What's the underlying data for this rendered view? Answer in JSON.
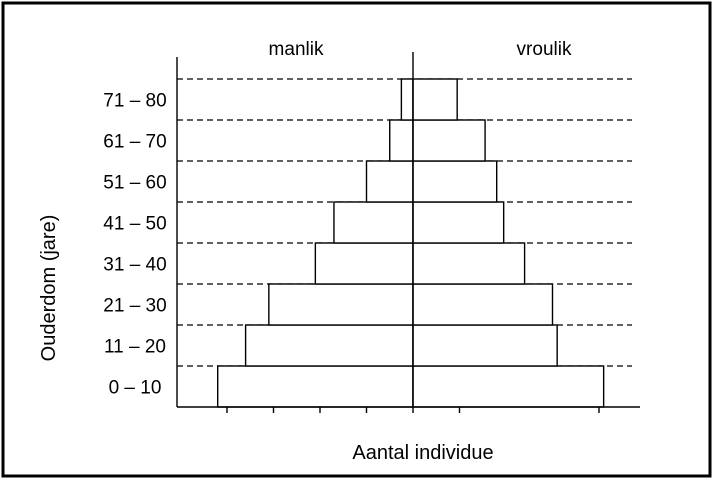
{
  "chart_data": {
    "type": "bar",
    "subtype": "population-pyramid",
    "title": "",
    "xlabel": "Aantal individue",
    "ylabel": "Ouderdom (jare)",
    "group_labels": {
      "left": "manlik",
      "right": "vroulik"
    },
    "categories": [
      "0 – 10",
      "11 – 20",
      "21 – 30",
      "31 – 40",
      "41 – 50",
      "51 – 60",
      "61 – 70",
      "71 – 80"
    ],
    "series": [
      {
        "name": "manlik",
        "side": "left",
        "values": [
          4.2,
          3.6,
          3.1,
          2.1,
          1.7,
          1.0,
          0.5,
          0.25
        ]
      },
      {
        "name": "vroulik",
        "side": "right",
        "values": [
          4.1,
          3.1,
          3.0,
          2.4,
          1.95,
          1.8,
          1.55,
          0.95
        ]
      }
    ],
    "xlim": [
      -5,
      5
    ],
    "x_ticks": [
      -4,
      -3,
      -2,
      -1,
      0,
      1,
      4
    ],
    "gridlines": "dashed horizontal at each bar top",
    "legend": "none"
  }
}
